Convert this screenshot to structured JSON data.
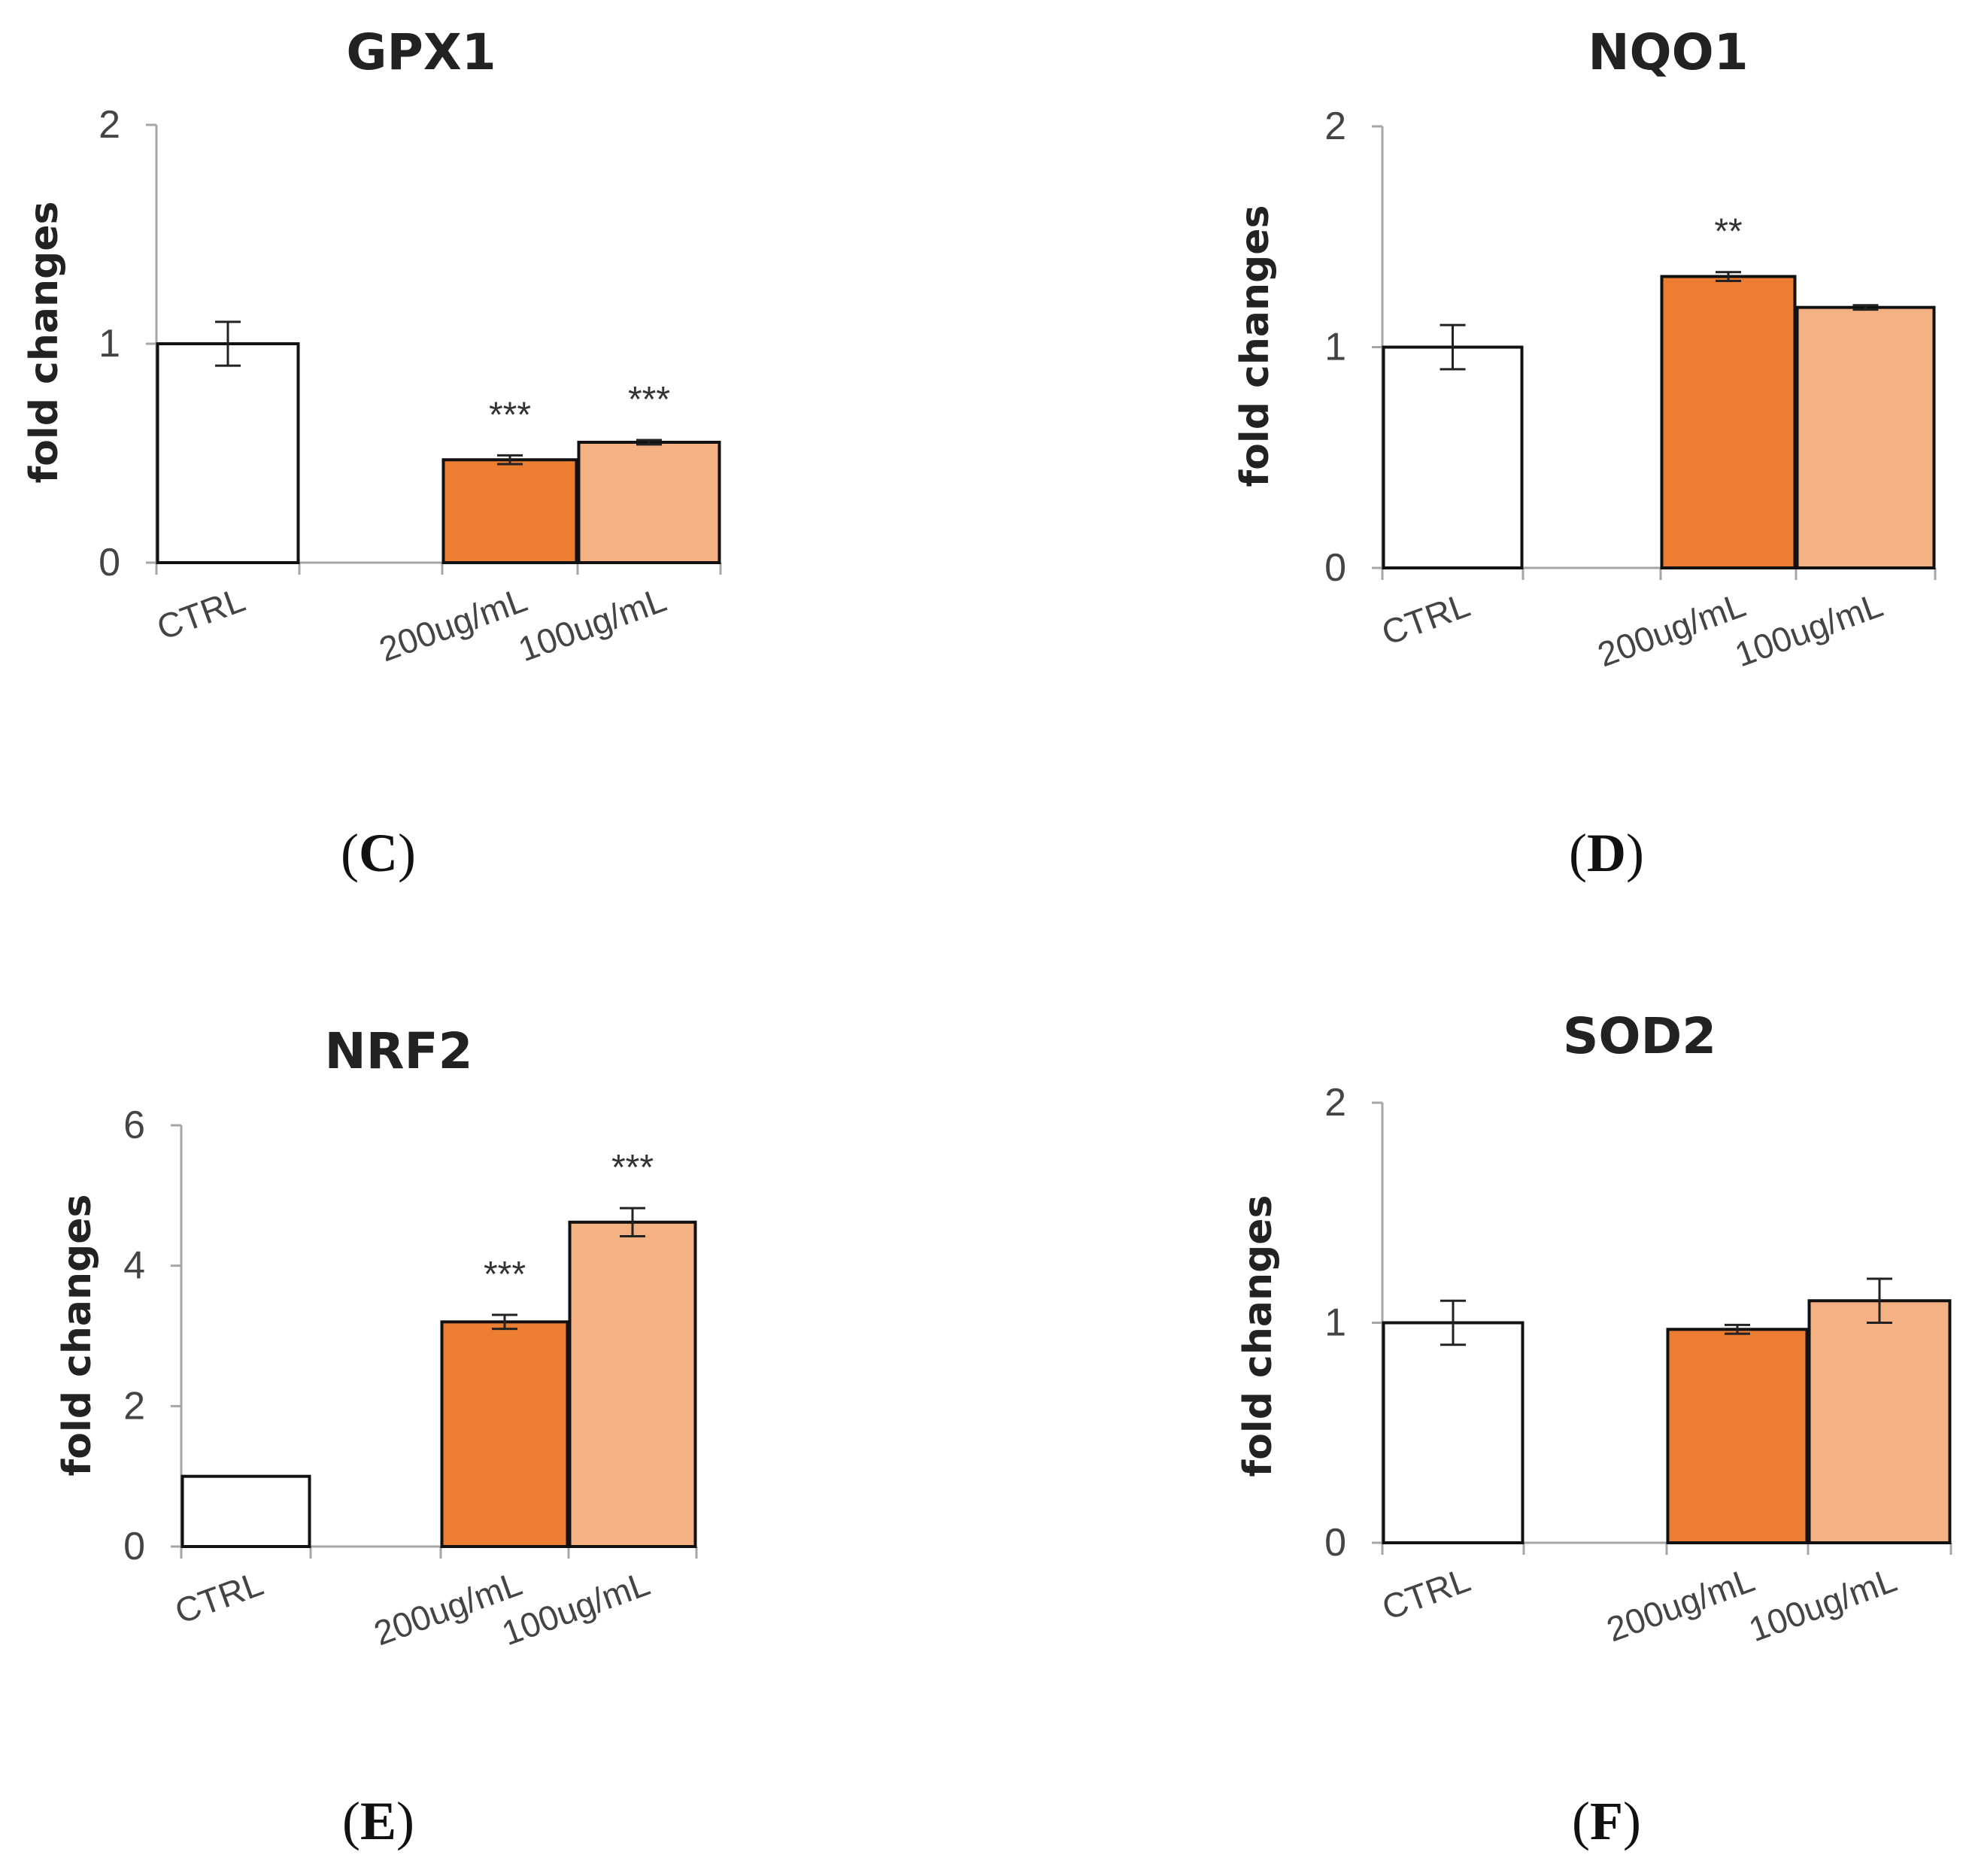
{
  "colors": {
    "ctrl_fill": "#ffffff",
    "dose200_fill": "#ed7d31",
    "dose100_fill": "#f4b183",
    "bar_stroke": "#111111",
    "axis": "#a6a6a6"
  },
  "chart_data": [
    {
      "type": "bar",
      "panel": "C",
      "title": "GPX1",
      "ylabel": "fold changes",
      "ylim": [
        0,
        2
      ],
      "yticks": [
        "0",
        "1",
        "2"
      ],
      "categories": [
        "CTRL",
        "200ug/mL",
        "100ug/mL"
      ],
      "values": [
        1.0,
        0.47,
        0.55
      ],
      "errors": [
        0.1,
        0.02,
        0.01
      ],
      "significance": [
        "",
        "***",
        "***"
      ]
    },
    {
      "type": "bar",
      "panel": "D",
      "title": "NQO1",
      "ylabel": "fold changes",
      "ylim": [
        0,
        2
      ],
      "yticks": [
        "0",
        "1",
        "2"
      ],
      "categories": [
        "CTRL",
        "200ug/mL",
        "100ug/mL"
      ],
      "values": [
        1.0,
        1.32,
        1.18
      ],
      "errors": [
        0.1,
        0.02,
        0.01
      ],
      "significance": [
        "",
        "**",
        ""
      ]
    },
    {
      "type": "bar",
      "panel": "E",
      "title": "NRF2",
      "ylabel": "fold changes",
      "ylim": [
        0,
        6
      ],
      "yticks": [
        "0",
        "2",
        "4",
        "6"
      ],
      "categories": [
        "CTRL",
        "200ug/mL",
        "100ug/mL"
      ],
      "values": [
        1.0,
        3.2,
        4.62
      ],
      "errors": [
        0.0,
        0.1,
        0.2
      ],
      "significance": [
        "",
        "***",
        "***"
      ]
    },
    {
      "type": "bar",
      "panel": "F",
      "title": "SOD2",
      "ylabel": "fold changes",
      "ylim": [
        0,
        2
      ],
      "yticks": [
        "0",
        "1",
        "2"
      ],
      "categories": [
        "CTRL",
        "200ug/mL",
        "100ug/mL"
      ],
      "values": [
        1.0,
        0.97,
        1.1
      ],
      "errors": [
        0.1,
        0.02,
        0.1
      ],
      "significance": [
        "",
        "",
        ""
      ]
    }
  ]
}
